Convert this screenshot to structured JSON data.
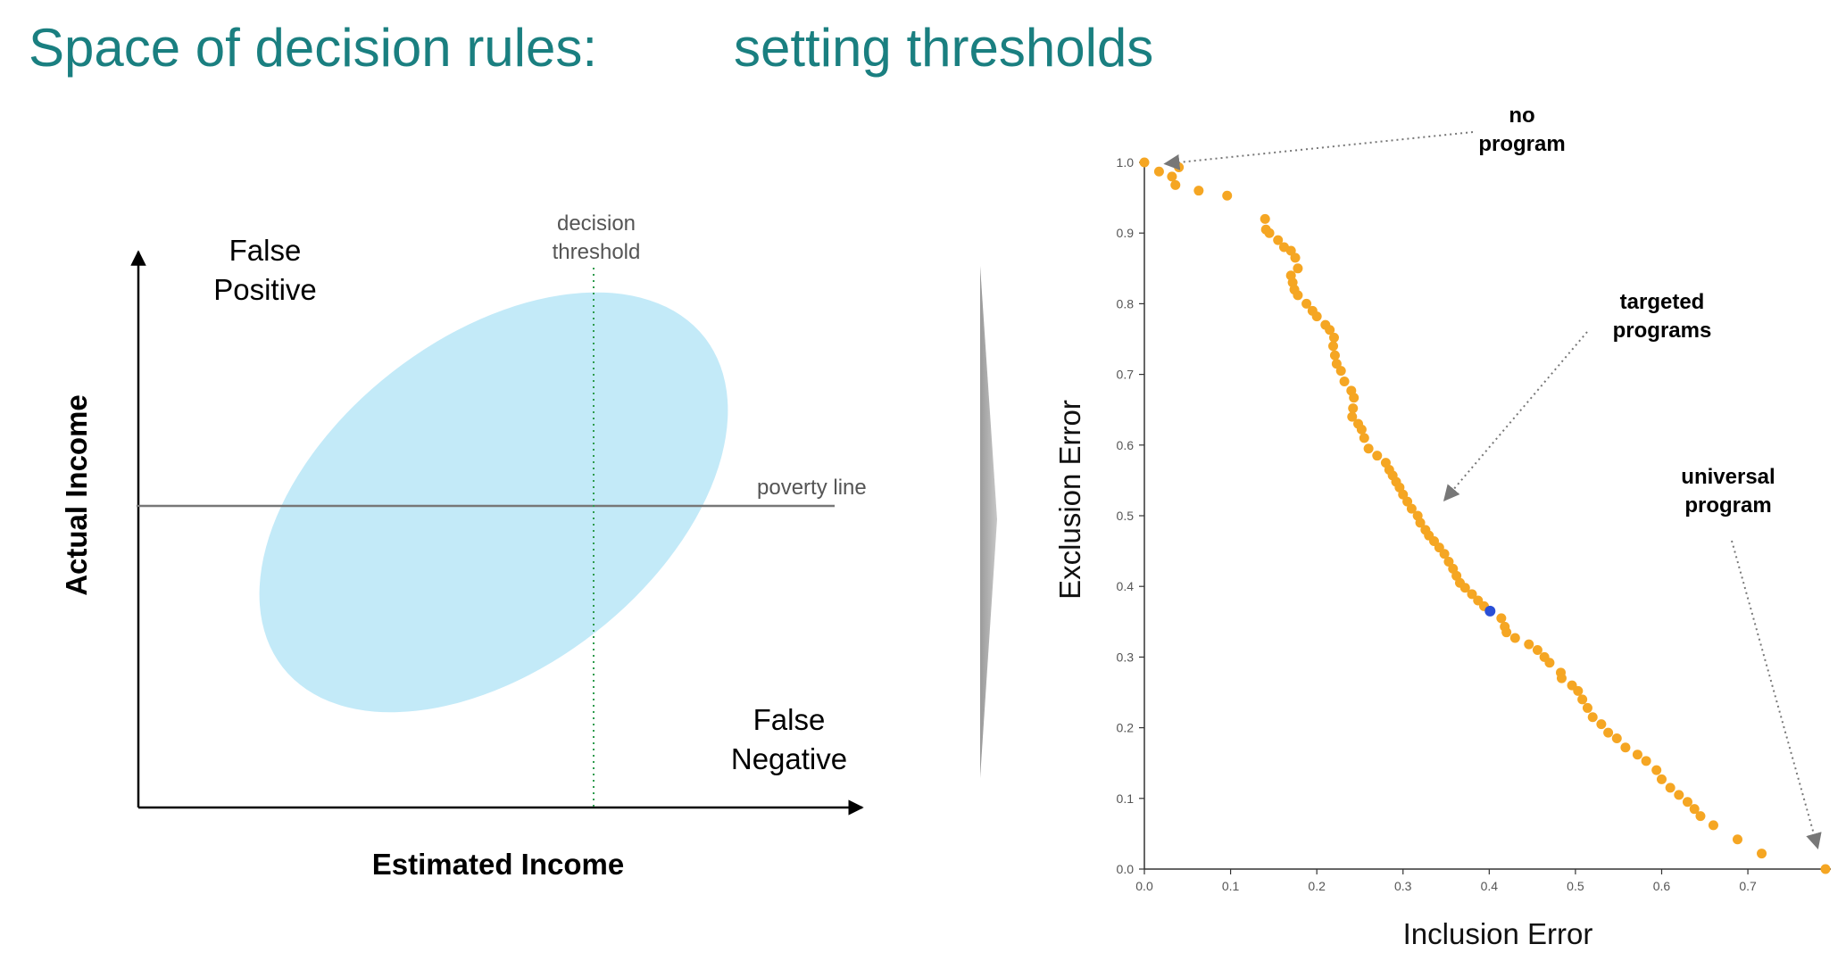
{
  "slide": {
    "title_left": "Space of decision rules:",
    "title_right": "setting thresholds",
    "accent_color": "#1a7f80"
  },
  "diagram": {
    "y_label": "Actual Income",
    "x_label": "Estimated Income",
    "false_positive_line1": "False",
    "false_positive_line2": "Positive",
    "false_negative_line1": "False",
    "false_negative_line2": "Negative",
    "threshold_line1": "decision",
    "threshold_line2": "threshold",
    "poverty_line": "poverty line",
    "ellipse_color": "#c3eaf8",
    "threshold_color": "#2e9b4e"
  },
  "chart_data": {
    "type": "scatter",
    "xlabel": "Inclusion Error",
    "ylabel": "Exclusion Error",
    "xlim": [
      0,
      0.79
    ],
    "ylim": [
      0,
      1.0
    ],
    "xticks": [
      "0.0",
      "0.1",
      "0.2",
      "0.3",
      "0.4",
      "0.5",
      "0.6",
      "0.7"
    ],
    "yticks": [
      "0.0",
      "0.1",
      "0.2",
      "0.3",
      "0.4",
      "0.5",
      "0.6",
      "0.7",
      "0.8",
      "0.9",
      "1.0"
    ],
    "point_color": "#f5a623",
    "highlight_color": "#2a4fd6",
    "highlight_point": [
      0.401,
      0.365
    ],
    "points": [
      [
        0.0,
        1.0
      ],
      [
        0.017,
        0.987
      ],
      [
        0.032,
        0.98
      ],
      [
        0.036,
        0.968
      ],
      [
        0.04,
        0.993
      ],
      [
        0.063,
        0.96
      ],
      [
        0.096,
        0.953
      ],
      [
        0.14,
        0.92
      ],
      [
        0.141,
        0.905
      ],
      [
        0.145,
        0.9
      ],
      [
        0.155,
        0.89
      ],
      [
        0.162,
        0.88
      ],
      [
        0.17,
        0.875
      ],
      [
        0.175,
        0.865
      ],
      [
        0.178,
        0.85
      ],
      [
        0.17,
        0.84
      ],
      [
        0.172,
        0.83
      ],
      [
        0.174,
        0.82
      ],
      [
        0.178,
        0.812
      ],
      [
        0.188,
        0.8
      ],
      [
        0.195,
        0.79
      ],
      [
        0.2,
        0.782
      ],
      [
        0.21,
        0.77
      ],
      [
        0.215,
        0.763
      ],
      [
        0.22,
        0.752
      ],
      [
        0.219,
        0.74
      ],
      [
        0.221,
        0.727
      ],
      [
        0.223,
        0.715
      ],
      [
        0.228,
        0.705
      ],
      [
        0.232,
        0.69
      ],
      [
        0.24,
        0.677
      ],
      [
        0.243,
        0.667
      ],
      [
        0.242,
        0.652
      ],
      [
        0.241,
        0.64
      ],
      [
        0.248,
        0.63
      ],
      [
        0.252,
        0.622
      ],
      [
        0.255,
        0.61
      ],
      [
        0.26,
        0.595
      ],
      [
        0.27,
        0.585
      ],
      [
        0.28,
        0.575
      ],
      [
        0.284,
        0.565
      ],
      [
        0.288,
        0.557
      ],
      [
        0.292,
        0.548
      ],
      [
        0.296,
        0.54
      ],
      [
        0.3,
        0.53
      ],
      [
        0.305,
        0.52
      ],
      [
        0.31,
        0.51
      ],
      [
        0.317,
        0.5
      ],
      [
        0.32,
        0.49
      ],
      [
        0.326,
        0.48
      ],
      [
        0.33,
        0.472
      ],
      [
        0.336,
        0.464
      ],
      [
        0.342,
        0.455
      ],
      [
        0.348,
        0.446
      ],
      [
        0.353,
        0.435
      ],
      [
        0.358,
        0.425
      ],
      [
        0.362,
        0.415
      ],
      [
        0.366,
        0.405
      ],
      [
        0.372,
        0.398
      ],
      [
        0.38,
        0.389
      ],
      [
        0.387,
        0.38
      ],
      [
        0.394,
        0.372
      ],
      [
        0.414,
        0.355
      ],
      [
        0.418,
        0.343
      ],
      [
        0.42,
        0.335
      ],
      [
        0.43,
        0.327
      ],
      [
        0.446,
        0.318
      ],
      [
        0.456,
        0.31
      ],
      [
        0.464,
        0.3
      ],
      [
        0.47,
        0.292
      ],
      [
        0.483,
        0.278
      ],
      [
        0.484,
        0.27
      ],
      [
        0.496,
        0.26
      ],
      [
        0.503,
        0.252
      ],
      [
        0.508,
        0.24
      ],
      [
        0.514,
        0.228
      ],
      [
        0.52,
        0.215
      ],
      [
        0.53,
        0.205
      ],
      [
        0.538,
        0.193
      ],
      [
        0.548,
        0.185
      ],
      [
        0.558,
        0.172
      ],
      [
        0.572,
        0.162
      ],
      [
        0.582,
        0.153
      ],
      [
        0.594,
        0.14
      ],
      [
        0.6,
        0.127
      ],
      [
        0.61,
        0.115
      ],
      [
        0.62,
        0.105
      ],
      [
        0.63,
        0.095
      ],
      [
        0.638,
        0.085
      ],
      [
        0.645,
        0.075
      ],
      [
        0.66,
        0.062
      ],
      [
        0.688,
        0.042
      ],
      [
        0.716,
        0.022
      ],
      [
        0.79,
        0.0
      ]
    ],
    "annotations": {
      "no_program_line1": "no",
      "no_program_line2": "program",
      "targeted_line1": "targeted",
      "targeted_line2": "programs",
      "universal_line1": "universal",
      "universal_line2": "program"
    }
  }
}
